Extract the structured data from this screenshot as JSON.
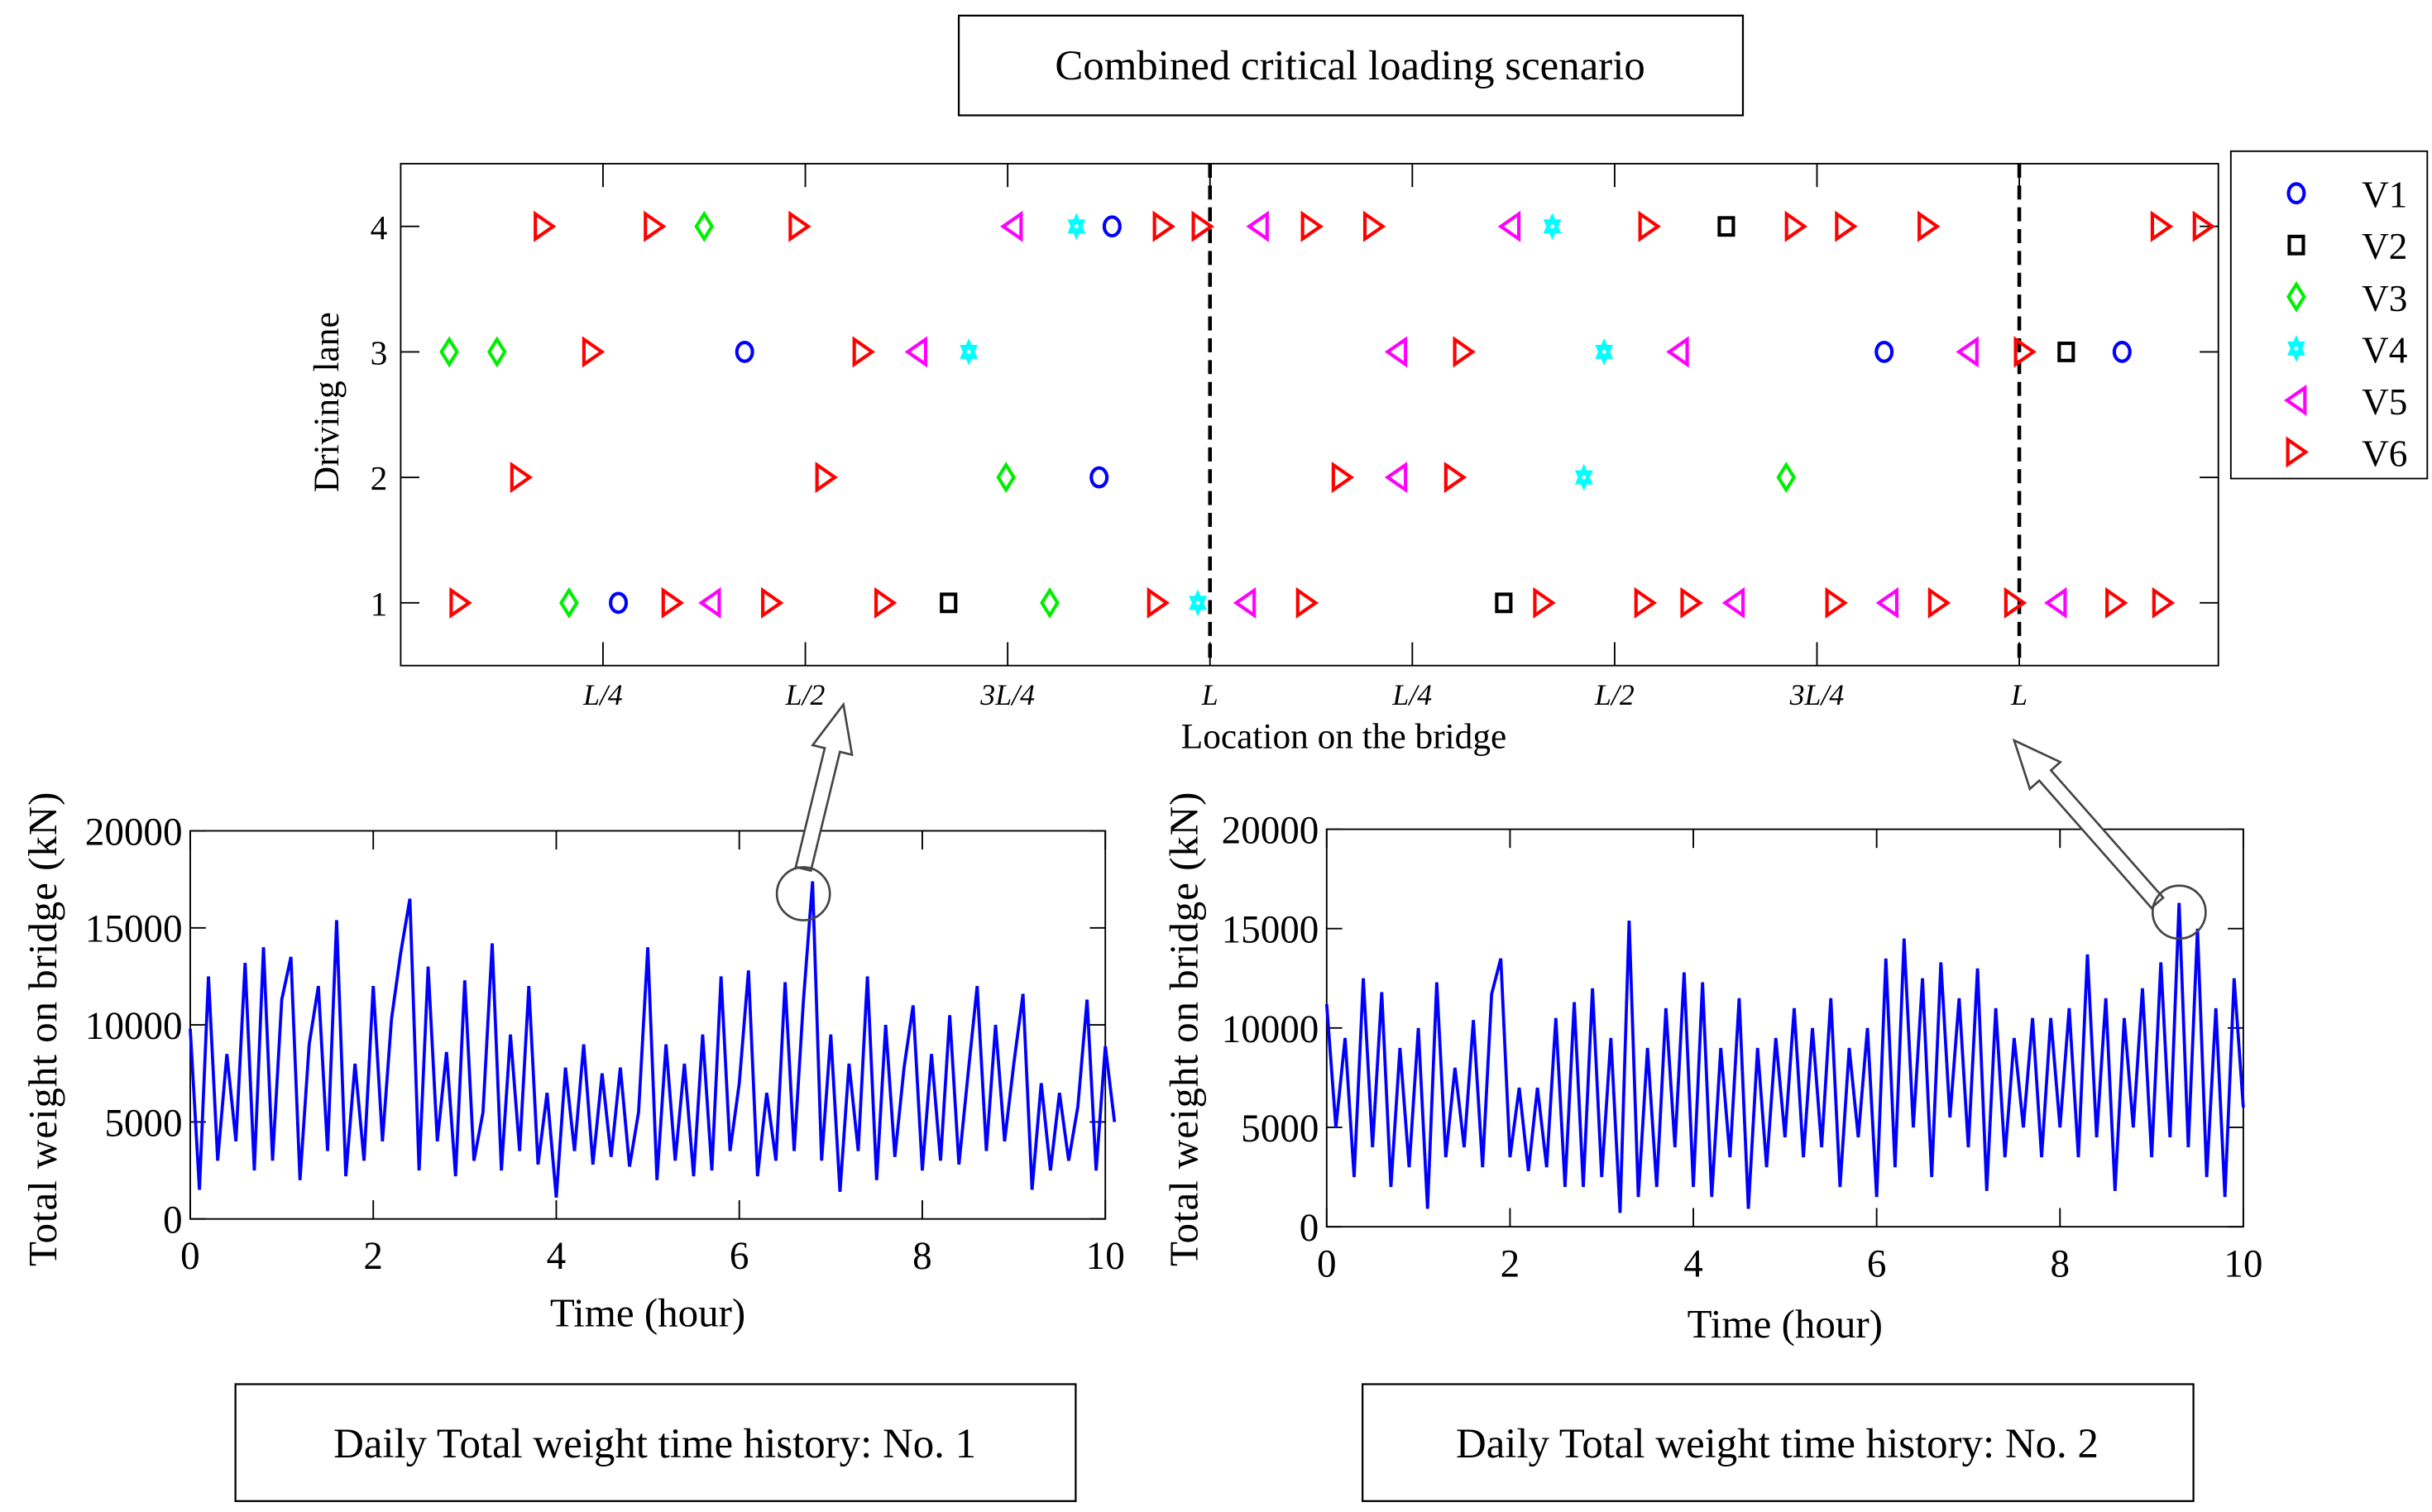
{
  "title": "Combined critical loading scenario",
  "caption_1": "Daily Total weight time history: No. 1",
  "caption_2": "Daily Total weight time history: No. 2",
  "chart_data": [
    {
      "type": "scatter",
      "title": "Combined critical loading scenario",
      "xlabel": "Location on the bridge",
      "ylabel": "Driving lane",
      "x_unit": "L (bridge length)",
      "xlim": [
        0,
        2.246
      ],
      "ylim": [
        0.5,
        4.5
      ],
      "xticks": [
        {
          "value": 0.25,
          "label": "L/4"
        },
        {
          "value": 0.5,
          "label": "L/2"
        },
        {
          "value": 0.75,
          "label": "3L/4"
        },
        {
          "value": 1.0,
          "label": "L"
        },
        {
          "value": 1.25,
          "label": "L/4"
        },
        {
          "value": 1.5,
          "label": "L/2"
        },
        {
          "value": 1.75,
          "label": "3L/4"
        },
        {
          "value": 2.0,
          "label": "L"
        }
      ],
      "yticks": [
        "1",
        "2",
        "3",
        "4"
      ],
      "dashed_lines_at": [
        1.0,
        2.0
      ],
      "legend_position": "outside-right",
      "colors": {
        "V1": "#0000ff",
        "V2": "#000000",
        "V3": "#00ee00",
        "V4": "#00ffff",
        "V5": "#ff00ff",
        "V6": "#ff0000"
      },
      "series": [
        {
          "name": "V1",
          "marker": "circle",
          "points": [
            [
              0.879,
              4
            ],
            [
              0.425,
              3
            ],
            [
              1.833,
              3
            ],
            [
              2.127,
              3
            ],
            [
              0.863,
              2
            ],
            [
              0.269,
              1
            ]
          ]
        },
        {
          "name": "V2",
          "marker": "square",
          "points": [
            [
              1.638,
              4
            ],
            [
              2.058,
              3
            ],
            [
              0.677,
              1
            ],
            [
              1.363,
              1
            ]
          ]
        },
        {
          "name": "V3",
          "marker": "diamond",
          "points": [
            [
              0.375,
              4
            ],
            [
              0.06,
              3
            ],
            [
              0.119,
              3
            ],
            [
              0.748,
              2
            ],
            [
              1.712,
              2
            ],
            [
              0.208,
              1
            ],
            [
              0.802,
              1
            ]
          ]
        },
        {
          "name": "V4",
          "marker": "hexagram",
          "points": [
            [
              0.835,
              4
            ],
            [
              1.423,
              4
            ],
            [
              0.702,
              3
            ],
            [
              1.487,
              3
            ],
            [
              1.462,
              2
            ],
            [
              0.985,
              1
            ]
          ]
        },
        {
          "name": "V5",
          "marker": "triangle-left",
          "points": [
            [
              0.756,
              4
            ],
            [
              1.06,
              4
            ],
            [
              1.371,
              4
            ],
            [
              0.638,
              3
            ],
            [
              1.231,
              3
            ],
            [
              1.579,
              3
            ],
            [
              1.937,
              3
            ],
            [
              1.231,
              2
            ],
            [
              0.383,
              1
            ],
            [
              1.044,
              1
            ],
            [
              1.648,
              1
            ],
            [
              1.838,
              1
            ],
            [
              2.046,
              1
            ]
          ]
        },
        {
          "name": "V6",
          "marker": "triangle-right",
          "points": [
            [
              0.177,
              4
            ],
            [
              0.313,
              4
            ],
            [
              0.492,
              4
            ],
            [
              0.942,
              4
            ],
            [
              0.99,
              4
            ],
            [
              1.125,
              4
            ],
            [
              1.202,
              4
            ],
            [
              1.542,
              4
            ],
            [
              1.723,
              4
            ],
            [
              1.785,
              4
            ],
            [
              1.887,
              4
            ],
            [
              2.175,
              4
            ],
            [
              2.227,
              4
            ],
            [
              0.237,
              3
            ],
            [
              0.571,
              3
            ],
            [
              1.313,
              3
            ],
            [
              2.006,
              3
            ],
            [
              0.148,
              2
            ],
            [
              0.525,
              2
            ],
            [
              1.163,
              2
            ],
            [
              1.302,
              2
            ],
            [
              0.073,
              1
            ],
            [
              0.335,
              1
            ],
            [
              0.458,
              1
            ],
            [
              0.598,
              1
            ],
            [
              0.935,
              1
            ],
            [
              1.119,
              1
            ],
            [
              1.412,
              1
            ],
            [
              1.537,
              1
            ],
            [
              1.594,
              1
            ],
            [
              1.773,
              1
            ],
            [
              1.9,
              1
            ],
            [
              1.994,
              1
            ],
            [
              2.119,
              1
            ],
            [
              2.177,
              1
            ]
          ]
        }
      ]
    },
    {
      "type": "line",
      "title": "Daily Total weight time history: No. 1",
      "xlabel": "Time (hour)",
      "ylabel": "Total weight on bridge (kN)",
      "xlim": [
        0,
        10
      ],
      "ylim": [
        0,
        20000
      ],
      "xticks": [
        "0",
        "2",
        "4",
        "6",
        "8",
        "10"
      ],
      "yticks": [
        "0",
        "5000",
        "10000",
        "15000",
        "20000"
      ],
      "color": "#0000ff",
      "highlight": {
        "x": 6.7,
        "y": 17400
      },
      "x_step": 0.1,
      "values": [
        9800,
        1500,
        12500,
        3000,
        8500,
        4000,
        13200,
        2500,
        14000,
        3000,
        11300,
        13500,
        2000,
        9000,
        12000,
        3500,
        15400,
        2200,
        8000,
        3000,
        12000,
        4000,
        10300,
        13700,
        16500,
        2500,
        13000,
        4000,
        8600,
        2200,
        12300,
        3000,
        5500,
        14200,
        2500,
        9500,
        3500,
        12000,
        2800,
        6500,
        1100,
        7800,
        3500,
        9000,
        2800,
        7500,
        3200,
        7800,
        2700,
        5500,
        14000,
        2000,
        9000,
        3000,
        8000,
        2200,
        9500,
        2500,
        12500,
        3500,
        7000,
        12800,
        2200,
        6500,
        3000,
        12200,
        3500,
        11200,
        17400,
        3000,
        9500,
        1400,
        8000,
        3500,
        12500,
        2000,
        10000,
        3200,
        7800,
        11000,
        2500,
        8500,
        3000,
        10500,
        2800,
        7500,
        12000,
        3500,
        10000,
        4000,
        8000,
        11600,
        1500,
        7000,
        2500,
        6500,
        3000,
        5800,
        11300,
        2500,
        8900,
        5000
      ]
    },
    {
      "type": "line",
      "title": "Daily Total weight time history: No. 2",
      "xlabel": "Time (hour)",
      "ylabel": "Total weight on bridge (kN)",
      "xlim": [
        0,
        10
      ],
      "ylim": [
        0,
        20000
      ],
      "xticks": [
        "0",
        "2",
        "4",
        "6",
        "8",
        "10"
      ],
      "yticks": [
        "0",
        "5000",
        "10000",
        "15000",
        "20000"
      ],
      "color": "#0000ff",
      "highlight": {
        "x": 9.3,
        "y": 16300
      },
      "x_step": 0.1,
      "values": [
        11200,
        5000,
        9500,
        2500,
        12500,
        4000,
        11800,
        2000,
        9000,
        3000,
        10000,
        900,
        12300,
        3500,
        8000,
        4000,
        10400,
        3000,
        11700,
        13500,
        3500,
        7000,
        2800,
        7000,
        3000,
        10500,
        2000,
        11300,
        2000,
        12000,
        2500,
        9500,
        700,
        15400,
        1500,
        9000,
        2000,
        11000,
        4000,
        12800,
        2000,
        12300,
        1500,
        9000,
        3500,
        11500,
        900,
        9000,
        3000,
        9500,
        4500,
        11000,
        3500,
        10000,
        4000,
        11500,
        2000,
        9000,
        4500,
        10000,
        1500,
        13500,
        3000,
        14500,
        5000,
        12500,
        2500,
        13300,
        5500,
        11500,
        4000,
        13000,
        1800,
        11000,
        3500,
        9500,
        5000,
        10500,
        3500,
        10500,
        5000,
        11000,
        3500,
        13700,
        4500,
        11500,
        1800,
        10500,
        5000,
        12000,
        3500,
        13300,
        4500,
        16300,
        4000,
        15000,
        2500,
        11000,
        1500,
        12500,
        6000
      ]
    }
  ]
}
